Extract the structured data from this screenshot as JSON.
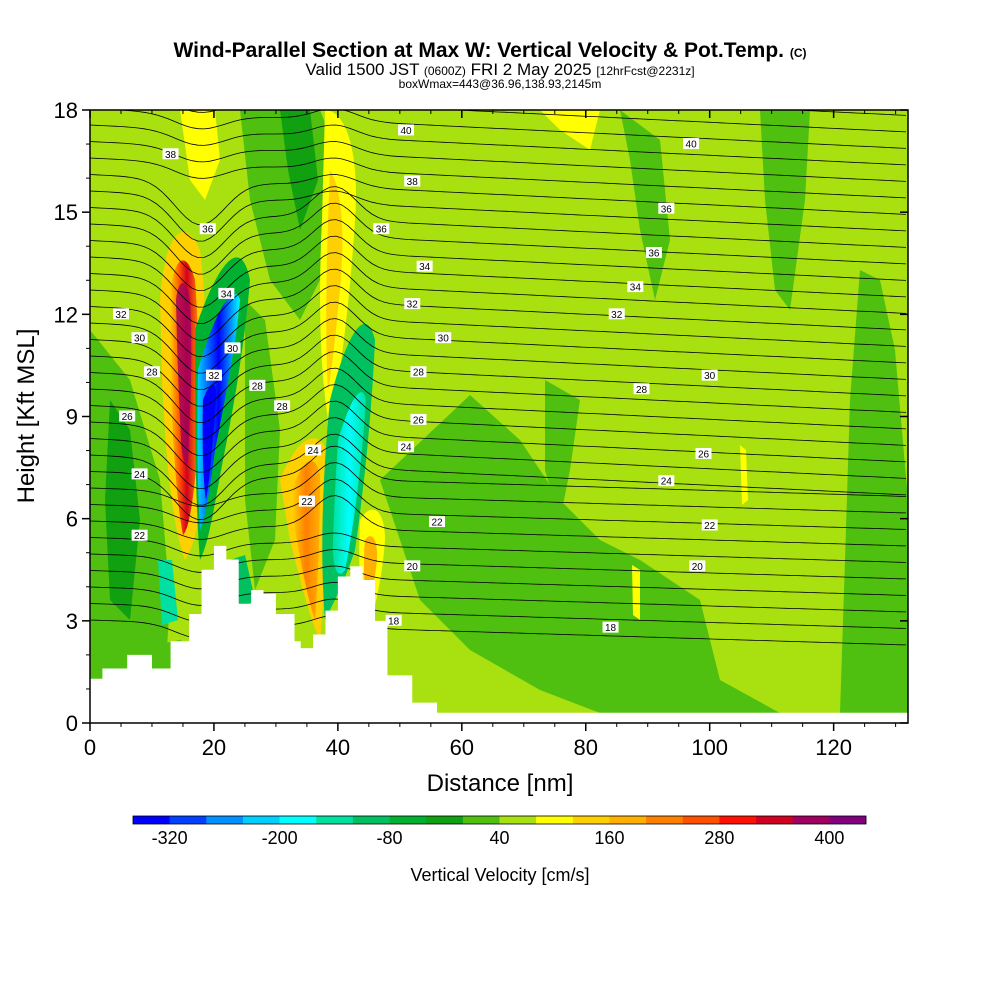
{
  "chart_data": {
    "type": "heatmap",
    "title": "Wind-Parallel Section at Max W: Vertical Velocity & Pot.Temp.",
    "title_suffix": "(C)",
    "subtitle_main": "Valid 1500 JST",
    "subtitle_utc": "(0600Z)",
    "subtitle_date": "FRI 2 May 2025",
    "subtitle_fcst": "[12hrFcst@2231z]",
    "subtitle2": "boxWmax=443@36.96,138.93,2145m",
    "xlabel": "Distance [nm]",
    "ylabel": "Height [Kft MSL]",
    "xlim": [
      0,
      132
    ],
    "ylim": [
      0,
      18
    ],
    "x_ticks": [
      "0",
      "20",
      "40",
      "60",
      "80",
      "100",
      "120"
    ],
    "x_tick_values": [
      0,
      20,
      40,
      60,
      80,
      100,
      120
    ],
    "y_ticks": [
      "0",
      "3",
      "6",
      "9",
      "12",
      "15",
      "18"
    ],
    "y_tick_values": [
      0,
      3,
      6,
      9,
      12,
      15,
      18
    ],
    "colorbar": {
      "label": "Vertical Velocity [cm/s]",
      "min": -360,
      "max": 440,
      "tick_labels": [
        "-320",
        "-200",
        "-80",
        "40",
        "160",
        "280",
        "400"
      ],
      "tick_values": [
        -320,
        -200,
        -80,
        40,
        160,
        280,
        400
      ],
      "colors": [
        "#0000ff",
        "#0040ff",
        "#0090ff",
        "#00d0ff",
        "#00ffff",
        "#00e0a0",
        "#00c060",
        "#00b030",
        "#10a010",
        "#50c010",
        "#a8e010",
        "#ffff00",
        "#ffd000",
        "#ffb000",
        "#ff8000",
        "#ff5000",
        "#ff1000",
        "#d00020",
        "#a00060",
        "#800080"
      ]
    },
    "terrain_kft": [
      [
        0,
        1.3
      ],
      [
        2,
        1.6
      ],
      [
        6,
        2
      ],
      [
        10,
        1.6
      ],
      [
        13,
        2.4
      ],
      [
        16,
        3.2
      ],
      [
        18,
        4.5
      ],
      [
        20,
        5.2
      ],
      [
        22,
        4.8
      ],
      [
        24,
        3.5
      ],
      [
        26,
        3.9
      ],
      [
        28,
        3.8
      ],
      [
        30,
        3.2
      ],
      [
        33,
        2.4
      ],
      [
        34,
        2.2
      ],
      [
        36,
        2.6
      ],
      [
        38,
        3.3
      ],
      [
        40,
        4.3
      ],
      [
        42,
        4.6
      ],
      [
        44,
        4.2
      ],
      [
        46,
        3
      ],
      [
        48,
        1.4
      ],
      [
        52,
        0.6
      ],
      [
        56,
        0.3
      ],
      [
        60,
        0.3
      ],
      [
        132,
        0.3
      ]
    ],
    "potential_temperature_contours": [
      {
        "label": "18",
        "label_positions": [
          [
            49,
            3.0
          ],
          [
            84,
            2.8
          ]
        ]
      },
      {
        "label": "20",
        "label_positions": [
          [
            52,
            4.6
          ],
          [
            98,
            4.6
          ]
        ]
      },
      {
        "label": "22",
        "label_positions": [
          [
            8,
            5.5
          ],
          [
            35,
            6.5
          ],
          [
            56,
            5.9
          ],
          [
            100,
            5.8
          ]
        ]
      },
      {
        "label": "24",
        "label_positions": [
          [
            8,
            7.3
          ],
          [
            36,
            8.0
          ],
          [
            51,
            8.1
          ],
          [
            93,
            7.1
          ]
        ]
      },
      {
        "label": "26",
        "label_positions": [
          [
            6,
            9.0
          ],
          [
            99,
            7.9
          ]
        ]
      },
      {
        "label": "26",
        "label_positions": [
          [
            53,
            8.9
          ]
        ]
      },
      {
        "label": "28",
        "label_positions": [
          [
            10,
            10.3
          ],
          [
            31,
            9.3
          ],
          [
            53,
            10.3
          ],
          [
            89,
            9.8
          ]
        ]
      },
      {
        "label": "28",
        "label_positions": [
          [
            27,
            9.9
          ]
        ]
      },
      {
        "label": "30",
        "label_positions": [
          [
            8,
            11.3
          ],
          [
            23,
            11.0
          ],
          [
            57,
            11.3
          ],
          [
            100,
            10.2
          ]
        ]
      },
      {
        "label": "32",
        "label_positions": [
          [
            5,
            12.0
          ],
          [
            20,
            10.2
          ],
          [
            52,
            12.3
          ],
          [
            85,
            12.0
          ]
        ]
      },
      {
        "label": "34",
        "label_positions": [
          [
            22,
            12.6
          ],
          [
            54,
            13.4
          ],
          [
            88,
            12.8
          ]
        ]
      },
      {
        "label": "36",
        "label_positions": [
          [
            19,
            14.5
          ],
          [
            47,
            14.5
          ],
          [
            91,
            13.8
          ],
          [
            93,
            15.1
          ]
        ]
      },
      {
        "label": "38",
        "label_positions": [
          [
            13,
            16.7
          ],
          [
            52,
            15.9
          ]
        ]
      },
      {
        "label": "40",
        "label_positions": [
          [
            51,
            17.4
          ],
          [
            97,
            17.0
          ]
        ]
      }
    ]
  }
}
